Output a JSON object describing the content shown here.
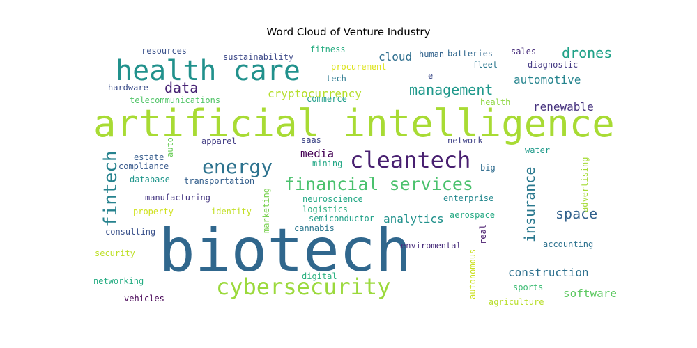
{
  "chart_data": {
    "type": "wordcloud",
    "title": "Word Cloud of Venture Industry",
    "words": [
      {
        "text": "artificial intelligence",
        "color": "#a8db34"
      },
      {
        "text": "biotech",
        "color": "#30678d"
      },
      {
        "text": "health care",
        "color": "#21918c"
      },
      {
        "text": "cleantech",
        "color": "#481f70"
      },
      {
        "text": "cybersecurity",
        "color": "#9bd93c"
      },
      {
        "text": "financial services",
        "color": "#4ac16d"
      },
      {
        "text": "energy",
        "color": "#2c728e"
      },
      {
        "text": "fintech",
        "color": "#26828e"
      },
      {
        "text": "drones",
        "color": "#1fa187"
      },
      {
        "text": "management",
        "color": "#1f988b"
      },
      {
        "text": "insurance",
        "color": "#2a788e"
      },
      {
        "text": "space",
        "color": "#33628d"
      },
      {
        "text": "data",
        "color": "#482475"
      },
      {
        "text": "cryptocurrency",
        "color": "#b5de2b"
      },
      {
        "text": "construction",
        "color": "#2d708e"
      },
      {
        "text": "analytics",
        "color": "#21918c"
      },
      {
        "text": "cloud",
        "color": "#2e6e8e"
      },
      {
        "text": "automotive",
        "color": "#25848e"
      },
      {
        "text": "software",
        "color": "#5ec962"
      },
      {
        "text": "media",
        "color": "#440154"
      },
      {
        "text": "renewable",
        "color": "#46327e"
      },
      {
        "text": "resources",
        "color": "#3b528b"
      },
      {
        "text": "sustainability",
        "color": "#3e4a89"
      },
      {
        "text": "fitness",
        "color": "#27ad81"
      },
      {
        "text": "human",
        "color": "#33638d"
      },
      {
        "text": "batteries",
        "color": "#31688e"
      },
      {
        "text": "sales",
        "color": "#472d7b"
      },
      {
        "text": "procurement",
        "color": "#dde318"
      },
      {
        "text": "fleet",
        "color": "#2a768e"
      },
      {
        "text": "diagnostic",
        "color": "#443983"
      },
      {
        "text": "tech",
        "color": "#2a788e"
      },
      {
        "text": "e",
        "color": "#3e4c8a"
      },
      {
        "text": "hardware",
        "color": "#3d4e8a"
      },
      {
        "text": "telecommunications",
        "color": "#52c569"
      },
      {
        "text": "commerce",
        "color": "#1f9e89"
      },
      {
        "text": "health",
        "color": "#8fd744"
      },
      {
        "text": "apparel",
        "color": "#433e85"
      },
      {
        "text": "saas",
        "color": "#3f4788"
      },
      {
        "text": "network",
        "color": "#414487"
      },
      {
        "text": "estate",
        "color": "#365c8d"
      },
      {
        "text": "auto",
        "color": "#6ccd5a"
      },
      {
        "text": "compliance",
        "color": "#38598c"
      },
      {
        "text": "mining",
        "color": "#22a785"
      },
      {
        "text": "water",
        "color": "#1f9a8a"
      },
      {
        "text": "big",
        "color": "#2f6c8e"
      },
      {
        "text": "advertising",
        "color": "#a5db36"
      },
      {
        "text": "database",
        "color": "#1f968b"
      },
      {
        "text": "transportation",
        "color": "#35608d"
      },
      {
        "text": "manufacturing",
        "color": "#453781"
      },
      {
        "text": "property",
        "color": "#d0e11c"
      },
      {
        "text": "identity",
        "color": "#c2df23"
      },
      {
        "text": "marketing",
        "color": "#7ad151"
      },
      {
        "text": "neuroscience",
        "color": "#22a884"
      },
      {
        "text": "logistics",
        "color": "#29af7f"
      },
      {
        "text": "enterprise",
        "color": "#23888e"
      },
      {
        "text": "semiconductor",
        "color": "#1fa088"
      },
      {
        "text": "aerospace",
        "color": "#24aa83"
      },
      {
        "text": "consulting",
        "color": "#3b528b"
      },
      {
        "text": "cannabis",
        "color": "#2a778e"
      },
      {
        "text": "real",
        "color": "#481b6d"
      },
      {
        "text": "security",
        "color": "#bddf26"
      },
      {
        "text": "enviromental",
        "color": "#472c7a"
      },
      {
        "text": "autonomous",
        "color": "#cae11f"
      },
      {
        "text": "accounting",
        "color": "#2c718e"
      },
      {
        "text": "networking",
        "color": "#25ac82"
      },
      {
        "text": "digital",
        "color": "#2ab07f"
      },
      {
        "text": "sports",
        "color": "#3dbc74"
      },
      {
        "text": "vehicles",
        "color": "#440154"
      },
      {
        "text": "agriculture",
        "color": "#b8de29"
      }
    ]
  }
}
